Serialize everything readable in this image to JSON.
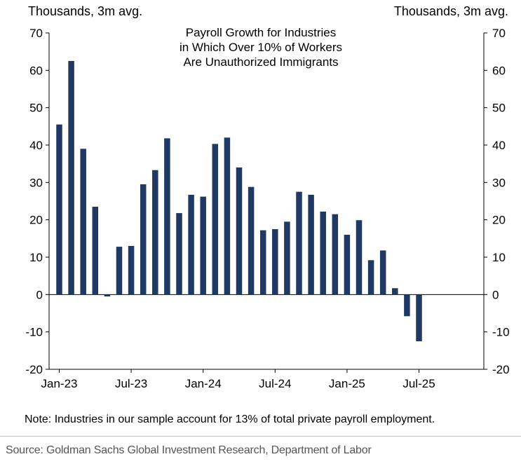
{
  "chart_data": {
    "type": "bar",
    "title": "Payroll Growth for Industries\nin Which Over 10% of Workers\nAre Unauthorized Immigrants",
    "ylabel_left": "Thousands, 3m avg.",
    "ylabel_right": "Thousands, 3m avg.",
    "ylim": [
      -20,
      70
    ],
    "yticks": [
      -20,
      -10,
      0,
      10,
      20,
      30,
      40,
      50,
      60,
      70
    ],
    "x_tick_labels": [
      "Jan-23",
      "Jul-23",
      "Jan-24",
      "Jul-24",
      "Jan-25",
      "Jul-25"
    ],
    "bar_color": "#1f3864",
    "categories": [
      "Jan-23",
      "Feb-23",
      "Mar-23",
      "Apr-23",
      "May-23",
      "Jun-23",
      "Jul-23",
      "Aug-23",
      "Sep-23",
      "Oct-23",
      "Nov-23",
      "Dec-23",
      "Jan-24",
      "Feb-24",
      "Mar-24",
      "Apr-24",
      "May-24",
      "Jun-24",
      "Jul-24",
      "Aug-24",
      "Sep-24",
      "Oct-24",
      "Nov-24",
      "Dec-24",
      "Jan-25",
      "Feb-25",
      "Mar-25",
      "Apr-25",
      "May-25",
      "Jun-25",
      "Jul-25"
    ],
    "values": [
      45.5,
      62.5,
      39,
      23.5,
      -0.5,
      12.8,
      13,
      29.5,
      33.3,
      41.8,
      21.8,
      26.7,
      26.2,
      40.3,
      42,
      34,
      28.8,
      17.2,
      17.5,
      19.5,
      27.5,
      26.7,
      22.2,
      21.5,
      16,
      19.9,
      9.2,
      11.8,
      1.7,
      -5.8,
      -12.5
    ]
  },
  "note": "Note: Industries in our sample account for 13% of total private payroll employment.",
  "source": "Source: Goldman Sachs Global Investment Research, Department of Labor"
}
